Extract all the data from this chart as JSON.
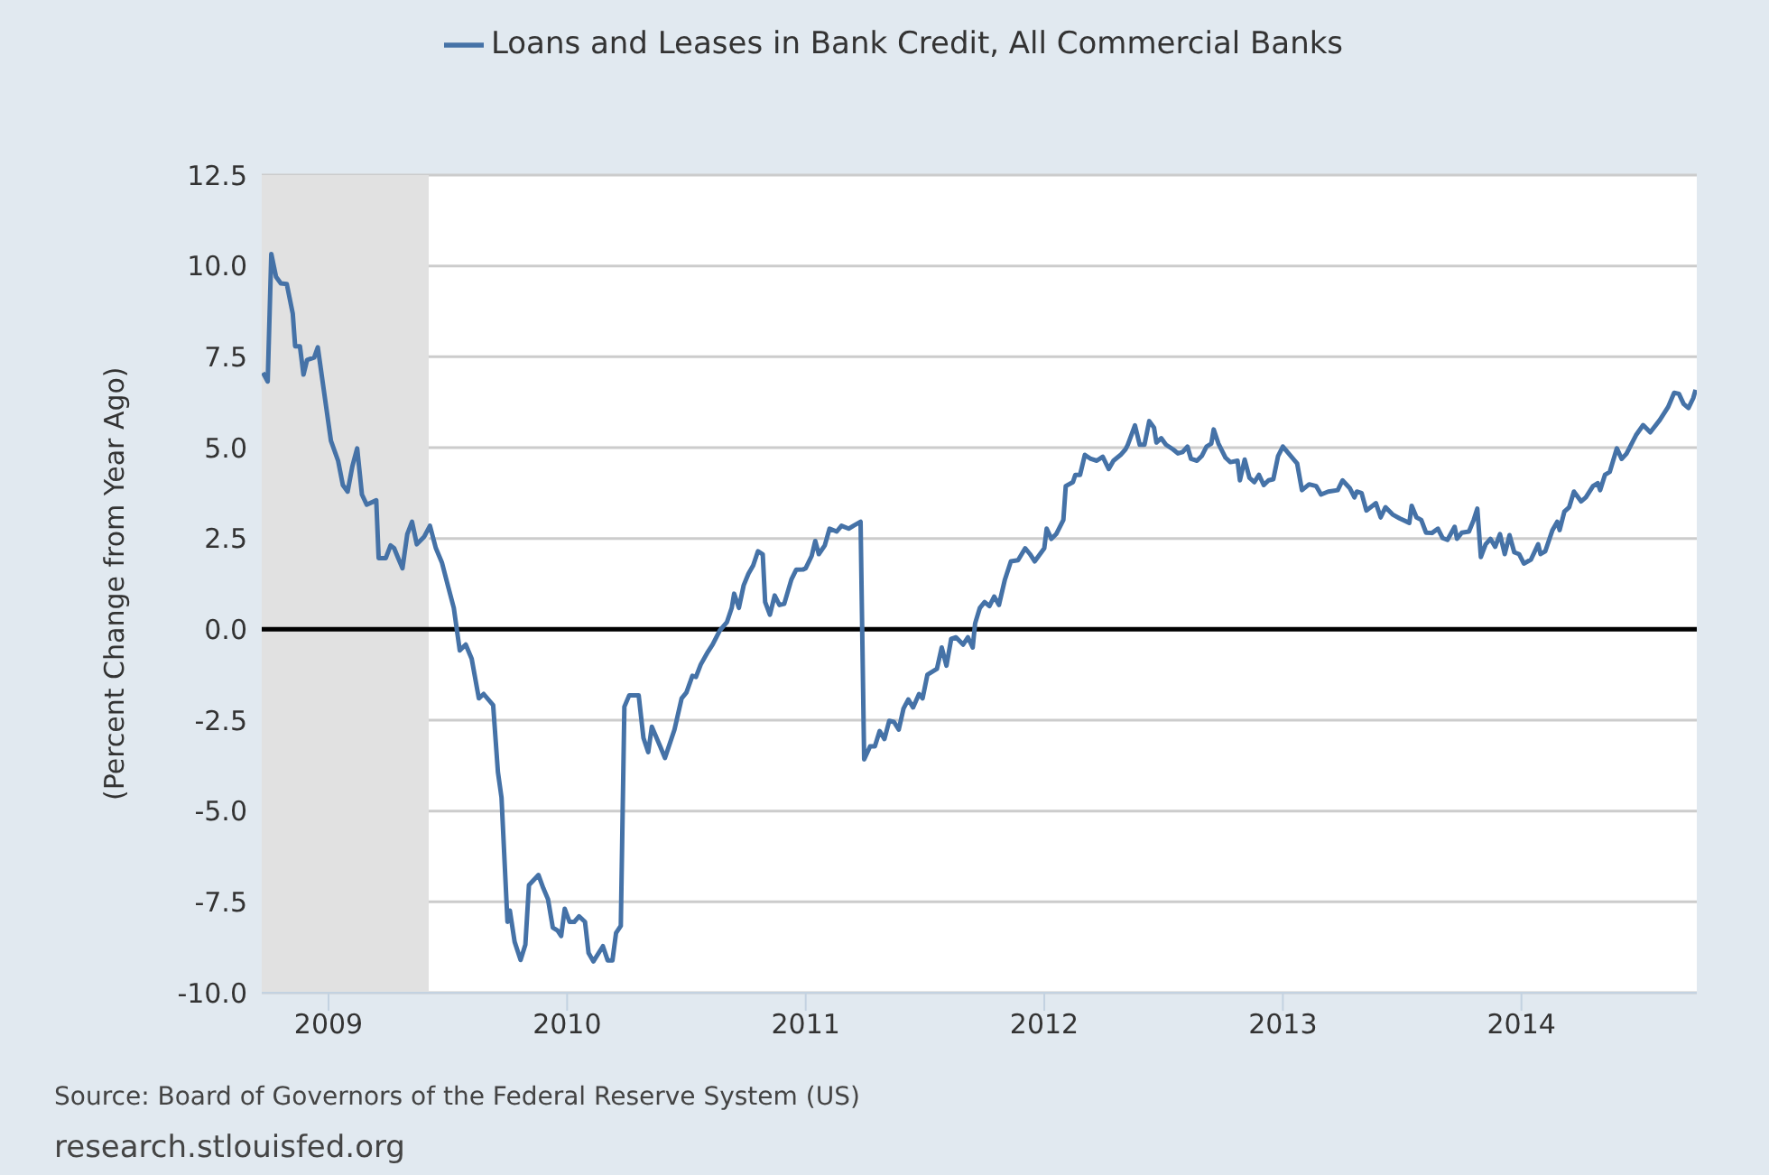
{
  "chart_data": {
    "type": "line",
    "ylabel": "(Percent Change from Year Ago)",
    "x": [
      2008.725,
      2008.745,
      2008.76,
      2008.78,
      2008.8,
      2008.825,
      2008.85,
      2008.86,
      2008.88,
      2008.895,
      2008.91,
      2008.94,
      2008.955,
      2008.975,
      2009.01,
      2009.04,
      2009.06,
      2009.08,
      2009.1,
      2009.12,
      2009.14,
      2009.16,
      2009.2,
      2009.21,
      2009.24,
      2009.26,
      2009.275,
      2009.29,
      2009.31,
      2009.33,
      2009.35,
      2009.37,
      2009.4,
      2009.425,
      2009.45,
      2009.475,
      2009.5,
      2009.525,
      2009.55,
      2009.575,
      2009.6,
      2009.63,
      2009.65,
      2009.69,
      2009.71,
      2009.725,
      2009.75,
      2009.76,
      2009.78,
      2009.805,
      2009.825,
      2009.84,
      2009.88,
      2009.9,
      2009.92,
      2009.94,
      2009.96,
      2009.975,
      2009.99,
      2010.01,
      2010.03,
      2010.05,
      2010.075,
      2010.09,
      2010.11,
      2010.15,
      2010.17,
      2010.19,
      2010.205,
      2010.225,
      2010.24,
      2010.26,
      2010.3,
      2010.32,
      2010.34,
      2010.355,
      2010.39,
      2010.41,
      2010.45,
      2010.48,
      2010.5,
      2010.525,
      2010.54,
      2010.56,
      2010.59,
      2010.61,
      2010.64,
      2010.67,
      2010.69,
      2010.7,
      2010.72,
      2010.74,
      2010.76,
      2010.78,
      2010.8,
      2010.82,
      2010.83,
      2010.85,
      2010.87,
      2010.89,
      2010.91,
      2010.94,
      2010.96,
      2010.99,
      2011.0,
      2011.025,
      2011.04,
      2011.055,
      2011.08,
      2011.1,
      2011.13,
      2011.15,
      2011.18,
      2011.2,
      2011.23,
      2011.245,
      2011.27,
      2011.29,
      2011.31,
      2011.33,
      2011.35,
      2011.37,
      2011.39,
      2011.41,
      2011.43,
      2011.45,
      2011.475,
      2011.49,
      2011.51,
      2011.55,
      2011.57,
      2011.59,
      2011.61,
      2011.63,
      2011.66,
      2011.68,
      2011.7,
      2011.71,
      2011.73,
      2011.75,
      2011.77,
      2011.79,
      2011.81,
      2011.835,
      2011.86,
      2011.89,
      2011.92,
      2011.94,
      2011.96,
      2012.0,
      2012.01,
      2012.03,
      2012.05,
      2012.08,
      2012.09,
      2012.12,
      2012.13,
      2012.15,
      2012.17,
      2012.195,
      2012.22,
      2012.245,
      2012.27,
      2012.29,
      2012.32,
      2012.34,
      2012.35,
      2012.38,
      2012.4,
      2012.42,
      2012.44,
      2012.46,
      2012.47,
      2012.49,
      2012.51,
      2012.54,
      2012.56,
      2012.58,
      2012.6,
      2012.615,
      2012.64,
      2012.66,
      2012.68,
      2012.7,
      2012.71,
      2012.73,
      2012.76,
      2012.78,
      2012.81,
      2012.82,
      2012.84,
      2012.86,
      2012.88,
      2012.9,
      2012.92,
      2012.94,
      2012.96,
      2012.98,
      2013.0,
      2013.06,
      2013.08,
      2013.11,
      2013.14,
      2013.16,
      2013.19,
      2013.23,
      2013.25,
      2013.28,
      2013.3,
      2013.31,
      2013.33,
      2013.35,
      2013.39,
      2013.41,
      2013.43,
      2013.46,
      2013.49,
      2013.53,
      2013.54,
      2013.56,
      2013.58,
      2013.6,
      2013.625,
      2013.65,
      2013.67,
      2013.69,
      2013.72,
      2013.73,
      2013.75,
      2013.78,
      2013.8,
      2013.815,
      2013.83,
      2013.85,
      2013.87,
      2013.89,
      2013.91,
      2013.93,
      2013.95,
      2013.97,
      2013.99,
      2014.01,
      2014.04,
      2014.07,
      2014.08,
      2014.1,
      2014.13,
      2014.15,
      2014.16,
      2014.18,
      2014.2,
      2014.22,
      2014.25,
      2014.27,
      2014.3,
      2014.32,
      2014.33,
      2014.35,
      2014.37,
      2014.4,
      2014.42,
      2014.44,
      2014.48,
      2014.51,
      2014.54,
      2014.58,
      2014.615,
      2014.64,
      2014.66,
      2014.68,
      2014.7,
      2014.72,
      2014.73
    ],
    "series": [
      {
        "name": "Loans and Leases in Bank Credit, All Commercial Banks",
        "color": "#4572a7",
        "values": [
          7.06,
          6.82,
          10.33,
          9.7,
          9.52,
          9.5,
          8.69,
          7.79,
          7.79,
          7.01,
          7.41,
          7.48,
          7.76,
          6.82,
          5.19,
          4.64,
          3.97,
          3.79,
          4.49,
          4.98,
          3.71,
          3.43,
          3.55,
          1.96,
          1.96,
          2.31,
          2.23,
          1.99,
          1.68,
          2.62,
          2.96,
          2.34,
          2.54,
          2.85,
          2.23,
          1.84,
          1.21,
          0.59,
          -0.58,
          -0.42,
          -0.81,
          -1.9,
          -1.78,
          -2.09,
          -3.93,
          -4.63,
          -8.05,
          -7.74,
          -8.6,
          -9.1,
          -8.68,
          -7.04,
          -6.76,
          -7.12,
          -7.43,
          -8.21,
          -8.29,
          -8.44,
          -7.69,
          -8.05,
          -8.05,
          -7.9,
          -8.05,
          -8.91,
          -9.14,
          -8.72,
          -9.11,
          -9.11,
          -8.36,
          -8.16,
          -2.13,
          -1.82,
          -1.82,
          -2.99,
          -3.38,
          -2.68,
          -3.22,
          -3.54,
          -2.76,
          -1.9,
          -1.74,
          -1.28,
          -1.31,
          -0.97,
          -0.62,
          -0.42,
          -0.03,
          0.2,
          0.59,
          0.98,
          0.59,
          1.21,
          1.53,
          1.76,
          2.15,
          2.06,
          0.75,
          0.4,
          0.93,
          0.67,
          0.7,
          1.37,
          1.64,
          1.65,
          1.68,
          2.02,
          2.43,
          2.07,
          2.31,
          2.77,
          2.69,
          2.85,
          2.77,
          2.85,
          2.96,
          -3.58,
          -3.22,
          -3.22,
          -2.8,
          -3.02,
          -2.52,
          -2.55,
          -2.76,
          -2.18,
          -1.93,
          -2.15,
          -1.78,
          -1.9,
          -1.25,
          -1.09,
          -0.5,
          -1.0,
          -0.26,
          -0.22,
          -0.42,
          -0.22,
          -0.5,
          0.16,
          0.59,
          0.75,
          0.64,
          0.9,
          0.67,
          1.37,
          1.87,
          1.9,
          2.23,
          2.07,
          1.87,
          2.23,
          2.77,
          2.49,
          2.62,
          3.01,
          3.94,
          4.05,
          4.25,
          4.25,
          4.8,
          4.69,
          4.64,
          4.75,
          4.41,
          4.64,
          4.8,
          4.95,
          5.08,
          5.61,
          5.08,
          5.08,
          5.73,
          5.55,
          5.14,
          5.26,
          5.08,
          4.95,
          4.84,
          4.88,
          5.03,
          4.69,
          4.64,
          4.77,
          5.03,
          5.11,
          5.5,
          5.11,
          4.72,
          4.6,
          4.64,
          4.1,
          4.67,
          4.17,
          4.05,
          4.25,
          3.97,
          4.1,
          4.13,
          4.77,
          5.03,
          4.56,
          3.83,
          3.99,
          3.94,
          3.71,
          3.79,
          3.83,
          4.1,
          3.89,
          3.63,
          3.79,
          3.75,
          3.27,
          3.47,
          3.08,
          3.36,
          3.16,
          3.05,
          2.93,
          3.4,
          3.08,
          3.01,
          2.66,
          2.65,
          2.77,
          2.51,
          2.46,
          2.82,
          2.49,
          2.66,
          2.69,
          3.01,
          3.32,
          1.99,
          2.34,
          2.49,
          2.27,
          2.62,
          2.07,
          2.59,
          2.12,
          2.07,
          1.81,
          1.92,
          2.34,
          2.07,
          2.15,
          2.73,
          2.96,
          2.73,
          3.24,
          3.36,
          3.79,
          3.52,
          3.63,
          3.94,
          4.02,
          3.83,
          4.25,
          4.33,
          4.98,
          4.69,
          4.83,
          5.34,
          5.62,
          5.42,
          5.76,
          6.12,
          6.51,
          6.48,
          6.2,
          6.09,
          6.36,
          6.59
        ]
      }
    ],
    "xlim": [
      2008.72,
      2014.735
    ],
    "xticks": [
      2009,
      2010,
      2011,
      2012,
      2013,
      2014
    ],
    "ylim": [
      -10,
      12.5
    ],
    "yticks": [
      {
        "value": -10,
        "label": "-10.0"
      },
      {
        "value": -7.5,
        "label": "-7.5"
      },
      {
        "value": -5,
        "label": "-5.0"
      },
      {
        "value": -2.5,
        "label": "-2.5"
      },
      {
        "value": 0,
        "label": "0.0"
      },
      {
        "value": 2.5,
        "label": "2.5"
      },
      {
        "value": 5,
        "label": "5.0"
      },
      {
        "value": 7.5,
        "label": "7.5"
      },
      {
        "value": 10,
        "label": "10.0"
      },
      {
        "value": 12.5,
        "label": "12.5"
      }
    ],
    "ref_lines": [
      {
        "axis": "y",
        "value": 0,
        "color": "#000000"
      }
    ],
    "bands": [
      {
        "axis": "x",
        "from": 2008.72,
        "to": 2009.42,
        "color": "#e1e1e1"
      }
    ],
    "grid": "y",
    "legend": "top",
    "marker": "none",
    "line_style": "solid",
    "annotations": [
      "Source: Board of Governors of the Federal Reserve System (US)",
      "research.stlouisfed.org"
    ]
  }
}
